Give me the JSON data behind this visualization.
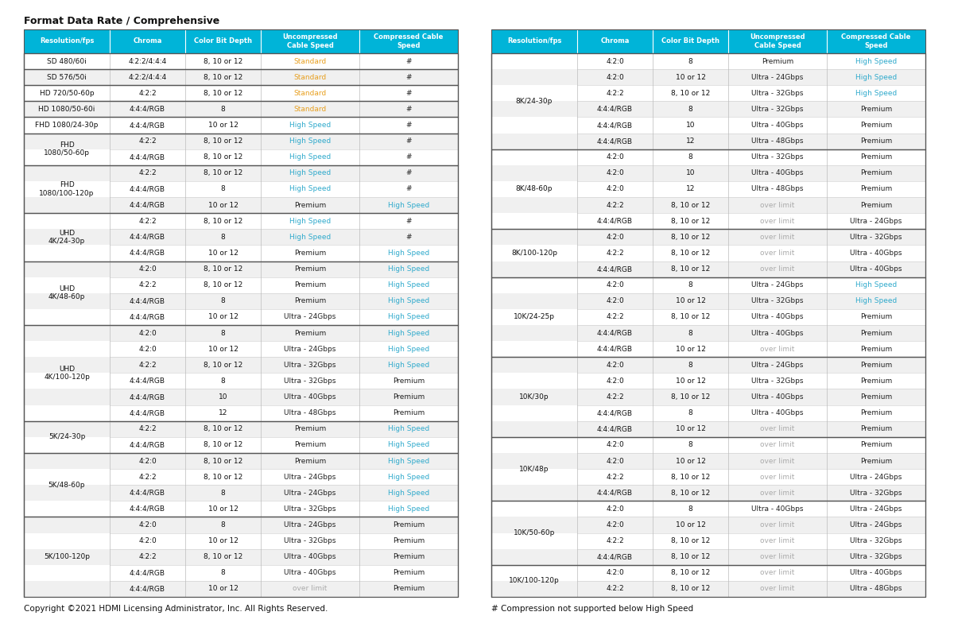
{
  "title": "Format Data Rate / Comprehensive",
  "footer_left": "Copyright ©2021 HDMI Licensing Administrator, Inc. All Rights Reserved.",
  "footer_right": "# Compression not supported below High Speed",
  "header_bg": "#00B4D8",
  "header_text_color": "#FFFFFF",
  "color_standard": "#E8A020",
  "color_high_speed": "#30AACC",
  "color_over_limit": "#AAAAAA",
  "headers": [
    "Resolution/fps",
    "Chroma",
    "Color Bit Depth",
    "Uncompressed\nCable Speed",
    "Compressed Cable\nSpeed"
  ],
  "left_table": [
    {
      "group": "SD 480/60i",
      "rows": [
        {
          "chroma": "4:2:2/4:4:4",
          "depth": "8, 10 or 12",
          "uncomp": "Standard",
          "comp": "#",
          "uc": "standard",
          "cc": "black"
        }
      ]
    },
    {
      "group": "SD 576/50i",
      "rows": [
        {
          "chroma": "4:2:2/4:4:4",
          "depth": "8, 10 or 12",
          "uncomp": "Standard",
          "comp": "#",
          "uc": "standard",
          "cc": "black"
        }
      ]
    },
    {
      "group": "HD 720/50-60p",
      "rows": [
        {
          "chroma": "4:2:2",
          "depth": "8, 10 or 12",
          "uncomp": "Standard",
          "comp": "#",
          "uc": "standard",
          "cc": "black"
        }
      ]
    },
    {
      "group": "HD 1080/50-60i",
      "rows": [
        {
          "chroma": "4:4:4/RGB",
          "depth": "8",
          "uncomp": "Standard",
          "comp": "#",
          "uc": "standard",
          "cc": "black"
        }
      ]
    },
    {
      "group": "FHD 1080/24-30p",
      "rows": [
        {
          "chroma": "4:4:4/RGB",
          "depth": "10 or 12",
          "uncomp": "High Speed",
          "comp": "#",
          "uc": "high_speed",
          "cc": "black"
        }
      ]
    },
    {
      "group": "FHD\n1080/50-60p",
      "rows": [
        {
          "chroma": "4:2:2",
          "depth": "8, 10 or 12",
          "uncomp": "High Speed",
          "comp": "#",
          "uc": "high_speed",
          "cc": "black"
        },
        {
          "chroma": "4:4:4/RGB",
          "depth": "8, 10 or 12",
          "uncomp": "High Speed",
          "comp": "#",
          "uc": "high_speed",
          "cc": "black"
        }
      ]
    },
    {
      "group": "FHD\n1080/100-120p",
      "rows": [
        {
          "chroma": "4:2:2",
          "depth": "8, 10 or 12",
          "uncomp": "High Speed",
          "comp": "#",
          "uc": "high_speed",
          "cc": "black"
        },
        {
          "chroma": "4:4:4/RGB",
          "depth": "8",
          "uncomp": "High Speed",
          "comp": "#",
          "uc": "high_speed",
          "cc": "black"
        },
        {
          "chroma": "4:4:4/RGB",
          "depth": "10 or 12",
          "uncomp": "Premium",
          "comp": "High Speed",
          "uc": "black",
          "cc": "high_speed"
        }
      ]
    },
    {
      "group": "UHD\n4K/24-30p",
      "rows": [
        {
          "chroma": "4:2:2",
          "depth": "8, 10 or 12",
          "uncomp": "High Speed",
          "comp": "#",
          "uc": "high_speed",
          "cc": "black"
        },
        {
          "chroma": "4:4:4/RGB",
          "depth": "8",
          "uncomp": "High Speed",
          "comp": "#",
          "uc": "high_speed",
          "cc": "black"
        },
        {
          "chroma": "4:4:4/RGB",
          "depth": "10 or 12",
          "uncomp": "Premium",
          "comp": "High Speed",
          "uc": "black",
          "cc": "high_speed"
        }
      ]
    },
    {
      "group": "UHD\n4K/48-60p",
      "rows": [
        {
          "chroma": "4:2:0",
          "depth": "8, 10 or 12",
          "uncomp": "Premium",
          "comp": "High Speed",
          "uc": "black",
          "cc": "high_speed"
        },
        {
          "chroma": "4:2:2",
          "depth": "8, 10 or 12",
          "uncomp": "Premium",
          "comp": "High Speed",
          "uc": "black",
          "cc": "high_speed"
        },
        {
          "chroma": "4:4:4/RGB",
          "depth": "8",
          "uncomp": "Premium",
          "comp": "High Speed",
          "uc": "black",
          "cc": "high_speed"
        },
        {
          "chroma": "4:4:4/RGB",
          "depth": "10 or 12",
          "uncomp": "Ultra - 24Gbps",
          "comp": "High Speed",
          "uc": "black",
          "cc": "high_speed"
        }
      ]
    },
    {
      "group": "UHD\n4K/100-120p",
      "rows": [
        {
          "chroma": "4:2:0",
          "depth": "8",
          "uncomp": "Premium",
          "comp": "High Speed",
          "uc": "black",
          "cc": "high_speed"
        },
        {
          "chroma": "4:2:0",
          "depth": "10 or 12",
          "uncomp": "Ultra - 24Gbps",
          "comp": "High Speed",
          "uc": "black",
          "cc": "high_speed"
        },
        {
          "chroma": "4:2:2",
          "depth": "8, 10 or 12",
          "uncomp": "Ultra - 32Gbps",
          "comp": "High Speed",
          "uc": "black",
          "cc": "high_speed"
        },
        {
          "chroma": "4:4:4/RGB",
          "depth": "8",
          "uncomp": "Ultra - 32Gbps",
          "comp": "Premium",
          "uc": "black",
          "cc": "black"
        },
        {
          "chroma": "4:4:4/RGB",
          "depth": "10",
          "uncomp": "Ultra - 40Gbps",
          "comp": "Premium",
          "uc": "black",
          "cc": "black"
        },
        {
          "chroma": "4:4:4/RGB",
          "depth": "12",
          "uncomp": "Ultra - 48Gbps",
          "comp": "Premium",
          "uc": "black",
          "cc": "black"
        }
      ]
    },
    {
      "group": "5K/24-30p",
      "rows": [
        {
          "chroma": "4:2:2",
          "depth": "8, 10 or 12",
          "uncomp": "Premium",
          "comp": "High Speed",
          "uc": "black",
          "cc": "high_speed"
        },
        {
          "chroma": "4:4:4/RGB",
          "depth": "8, 10 or 12",
          "uncomp": "Premium",
          "comp": "High Speed",
          "uc": "black",
          "cc": "high_speed"
        }
      ]
    },
    {
      "group": "5K/48-60p",
      "rows": [
        {
          "chroma": "4:2:0",
          "depth": "8, 10 or 12",
          "uncomp": "Premium",
          "comp": "High Speed",
          "uc": "black",
          "cc": "high_speed"
        },
        {
          "chroma": "4:2:2",
          "depth": "8, 10 or 12",
          "uncomp": "Ultra - 24Gbps",
          "comp": "High Speed",
          "uc": "black",
          "cc": "high_speed"
        },
        {
          "chroma": "4:4:4/RGB",
          "depth": "8",
          "uncomp": "Ultra - 24Gbps",
          "comp": "High Speed",
          "uc": "black",
          "cc": "high_speed"
        },
        {
          "chroma": "4:4:4/RGB",
          "depth": "10 or 12",
          "uncomp": "Ultra - 32Gbps",
          "comp": "High Speed",
          "uc": "black",
          "cc": "high_speed"
        }
      ]
    },
    {
      "group": "5K/100-120p",
      "rows": [
        {
          "chroma": "4:2:0",
          "depth": "8",
          "uncomp": "Ultra - 24Gbps",
          "comp": "Premium",
          "uc": "black",
          "cc": "black"
        },
        {
          "chroma": "4:2:0",
          "depth": "10 or 12",
          "uncomp": "Ultra - 32Gbps",
          "comp": "Premium",
          "uc": "black",
          "cc": "black"
        },
        {
          "chroma": "4:2:2",
          "depth": "8, 10 or 12",
          "uncomp": "Ultra - 40Gbps",
          "comp": "Premium",
          "uc": "black",
          "cc": "black"
        },
        {
          "chroma": "4:4:4/RGB",
          "depth": "8",
          "uncomp": "Ultra - 40Gbps",
          "comp": "Premium",
          "uc": "black",
          "cc": "black"
        },
        {
          "chroma": "4:4:4/RGB",
          "depth": "10 or 12",
          "uncomp": "over limit",
          "comp": "Premium",
          "uc": "over_limit",
          "cc": "black"
        }
      ]
    }
  ],
  "right_table": [
    {
      "group": "8K/24-30p",
      "rows": [
        {
          "chroma": "4:2:0",
          "depth": "8",
          "uncomp": "Premium",
          "comp": "High Speed",
          "uc": "black",
          "cc": "high_speed"
        },
        {
          "chroma": "4:2:0",
          "depth": "10 or 12",
          "uncomp": "Ultra - 24Gbps",
          "comp": "High Speed",
          "uc": "black",
          "cc": "high_speed"
        },
        {
          "chroma": "4:2:2",
          "depth": "8, 10 or 12",
          "uncomp": "Ultra - 32Gbps",
          "comp": "High Speed",
          "uc": "black",
          "cc": "high_speed"
        },
        {
          "chroma": "4:4:4/RGB",
          "depth": "8",
          "uncomp": "Ultra - 32Gbps",
          "comp": "Premium",
          "uc": "black",
          "cc": "black"
        },
        {
          "chroma": "4:4:4/RGB",
          "depth": "10",
          "uncomp": "Ultra - 40Gbps",
          "comp": "Premium",
          "uc": "black",
          "cc": "black"
        },
        {
          "chroma": "4:4:4/RGB",
          "depth": "12",
          "uncomp": "Ultra - 48Gbps",
          "comp": "Premium",
          "uc": "black",
          "cc": "black"
        }
      ]
    },
    {
      "group": "8K/48-60p",
      "rows": [
        {
          "chroma": "4:2:0",
          "depth": "8",
          "uncomp": "Ultra - 32Gbps",
          "comp": "Premium",
          "uc": "black",
          "cc": "black"
        },
        {
          "chroma": "4:2:0",
          "depth": "10",
          "uncomp": "Ultra - 40Gbps",
          "comp": "Premium",
          "uc": "black",
          "cc": "black"
        },
        {
          "chroma": "4:2:0",
          "depth": "12",
          "uncomp": "Ultra - 48Gbps",
          "comp": "Premium",
          "uc": "black",
          "cc": "black"
        },
        {
          "chroma": "4:2:2",
          "depth": "8, 10 or 12",
          "uncomp": "over limit",
          "comp": "Premium",
          "uc": "over_limit",
          "cc": "black"
        },
        {
          "chroma": "4:4:4/RGB",
          "depth": "8, 10 or 12",
          "uncomp": "over limit",
          "comp": "Ultra - 24Gbps",
          "uc": "over_limit",
          "cc": "black"
        }
      ]
    },
    {
      "group": "8K/100-120p",
      "rows": [
        {
          "chroma": "4:2:0",
          "depth": "8, 10 or 12",
          "uncomp": "over limit",
          "comp": "Ultra - 32Gbps",
          "uc": "over_limit",
          "cc": "black"
        },
        {
          "chroma": "4:2:2",
          "depth": "8, 10 or 12",
          "uncomp": "over limit",
          "comp": "Ultra - 40Gbps",
          "uc": "over_limit",
          "cc": "black"
        },
        {
          "chroma": "4:4:4/RGB",
          "depth": "8, 10 or 12",
          "uncomp": "over limit",
          "comp": "Ultra - 40Gbps",
          "uc": "over_limit",
          "cc": "black"
        }
      ]
    },
    {
      "group": "10K/24-25p",
      "rows": [
        {
          "chroma": "4:2:0",
          "depth": "8",
          "uncomp": "Ultra - 24Gbps",
          "comp": "High Speed",
          "uc": "black",
          "cc": "high_speed"
        },
        {
          "chroma": "4:2:0",
          "depth": "10 or 12",
          "uncomp": "Ultra - 32Gbps",
          "comp": "High Speed",
          "uc": "black",
          "cc": "high_speed"
        },
        {
          "chroma": "4:2:2",
          "depth": "8, 10 or 12",
          "uncomp": "Ultra - 40Gbps",
          "comp": "Premium",
          "uc": "black",
          "cc": "black"
        },
        {
          "chroma": "4:4:4/RGB",
          "depth": "8",
          "uncomp": "Ultra - 40Gbps",
          "comp": "Premium",
          "uc": "black",
          "cc": "black"
        },
        {
          "chroma": "4:4:4/RGB",
          "depth": "10 or 12",
          "uncomp": "over limit",
          "comp": "Premium",
          "uc": "over_limit",
          "cc": "black"
        }
      ]
    },
    {
      "group": "10K/30p",
      "rows": [
        {
          "chroma": "4:2:0",
          "depth": "8",
          "uncomp": "Ultra - 24Gbps",
          "comp": "Premium",
          "uc": "black",
          "cc": "black"
        },
        {
          "chroma": "4:2:0",
          "depth": "10 or 12",
          "uncomp": "Ultra - 32Gbps",
          "comp": "Premium",
          "uc": "black",
          "cc": "black"
        },
        {
          "chroma": "4:2:2",
          "depth": "8, 10 or 12",
          "uncomp": "Ultra - 40Gbps",
          "comp": "Premium",
          "uc": "black",
          "cc": "black"
        },
        {
          "chroma": "4:4:4/RGB",
          "depth": "8",
          "uncomp": "Ultra - 40Gbps",
          "comp": "Premium",
          "uc": "black",
          "cc": "black"
        },
        {
          "chroma": "4:4:4/RGB",
          "depth": "10 or 12",
          "uncomp": "over limit",
          "comp": "Premium",
          "uc": "over_limit",
          "cc": "black"
        }
      ]
    },
    {
      "group": "10K/48p",
      "rows": [
        {
          "chroma": "4:2:0",
          "depth": "8",
          "uncomp": "over limit",
          "comp": "Premium",
          "uc": "over_limit",
          "cc": "black"
        },
        {
          "chroma": "4:2:0",
          "depth": "10 or 12",
          "uncomp": "over limit",
          "comp": "Premium",
          "uc": "over_limit",
          "cc": "black"
        },
        {
          "chroma": "4:2:2",
          "depth": "8, 10 or 12",
          "uncomp": "over limit",
          "comp": "Ultra - 24Gbps",
          "uc": "over_limit",
          "cc": "black"
        },
        {
          "chroma": "4:4:4/RGB",
          "depth": "8, 10 or 12",
          "uncomp": "over limit",
          "comp": "Ultra - 32Gbps",
          "uc": "over_limit",
          "cc": "black"
        }
      ]
    },
    {
      "group": "10K/50-60p",
      "rows": [
        {
          "chroma": "4:2:0",
          "depth": "8",
          "uncomp": "Ultra - 40Gbps",
          "comp": "Ultra - 24Gbps",
          "uc": "black",
          "cc": "black"
        },
        {
          "chroma": "4:2:0",
          "depth": "10 or 12",
          "uncomp": "over limit",
          "comp": "Ultra - 24Gbps",
          "uc": "over_limit",
          "cc": "black"
        },
        {
          "chroma": "4:2:2",
          "depth": "8, 10 or 12",
          "uncomp": "over limit",
          "comp": "Ultra - 32Gbps",
          "uc": "over_limit",
          "cc": "black"
        },
        {
          "chroma": "4:4:4/RGB",
          "depth": "8, 10 or 12",
          "uncomp": "over limit",
          "comp": "Ultra - 32Gbps",
          "uc": "over_limit",
          "cc": "black"
        }
      ]
    },
    {
      "group": "10K/100-120p",
      "rows": [
        {
          "chroma": "4:2:0",
          "depth": "8, 10 or 12",
          "uncomp": "over limit",
          "comp": "Ultra - 40Gbps",
          "uc": "over_limit",
          "cc": "black"
        },
        {
          "chroma": "4:2:2",
          "depth": "8, 10 or 12",
          "uncomp": "over limit",
          "comp": "Ultra - 48Gbps",
          "uc": "over_limit",
          "cc": "black"
        }
      ]
    }
  ]
}
